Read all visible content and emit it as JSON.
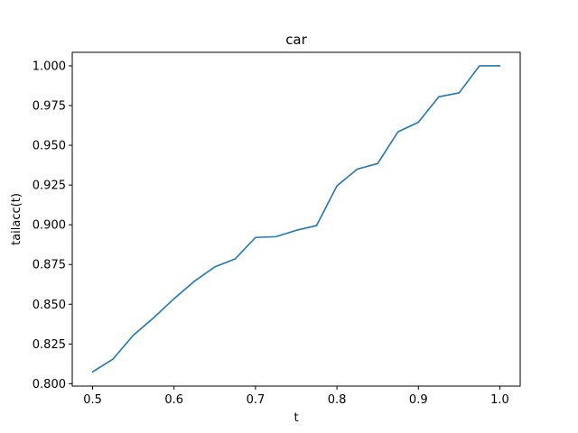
{
  "chart_data": {
    "type": "line",
    "title": "car",
    "xlabel": "t",
    "ylabel": "tailacc(t)",
    "xlim": [
      0.475,
      1.025
    ],
    "ylim": [
      0.7985,
      1.0085
    ],
    "xticks": [
      0.5,
      0.6,
      0.7,
      0.8,
      0.9,
      1.0
    ],
    "xtick_labels": [
      "0.5",
      "0.6",
      "0.7",
      "0.8",
      "0.9",
      "1.0"
    ],
    "yticks": [
      0.8,
      0.825,
      0.85,
      0.875,
      0.9,
      0.925,
      0.95,
      0.975,
      1.0
    ],
    "ytick_labels": [
      "0.800",
      "0.825",
      "0.850",
      "0.875",
      "0.900",
      "0.925",
      "0.950",
      "0.975",
      "1.000"
    ],
    "grid": false,
    "series": [
      {
        "color": "#1f77b4",
        "x": [
          0.5,
          0.525,
          0.55,
          0.575,
          0.6,
          0.625,
          0.65,
          0.675,
          0.7,
          0.725,
          0.75,
          0.775,
          0.8,
          0.825,
          0.85,
          0.875,
          0.9,
          0.925,
          0.95,
          0.975,
          1.0
        ],
        "y": [
          0.8075,
          0.8155,
          0.8305,
          0.8415,
          0.8535,
          0.8645,
          0.8735,
          0.8785,
          0.892,
          0.8925,
          0.8965,
          0.8995,
          0.9245,
          0.935,
          0.9385,
          0.9585,
          0.9645,
          0.9805,
          0.983,
          1.0,
          1.0
        ]
      }
    ]
  }
}
